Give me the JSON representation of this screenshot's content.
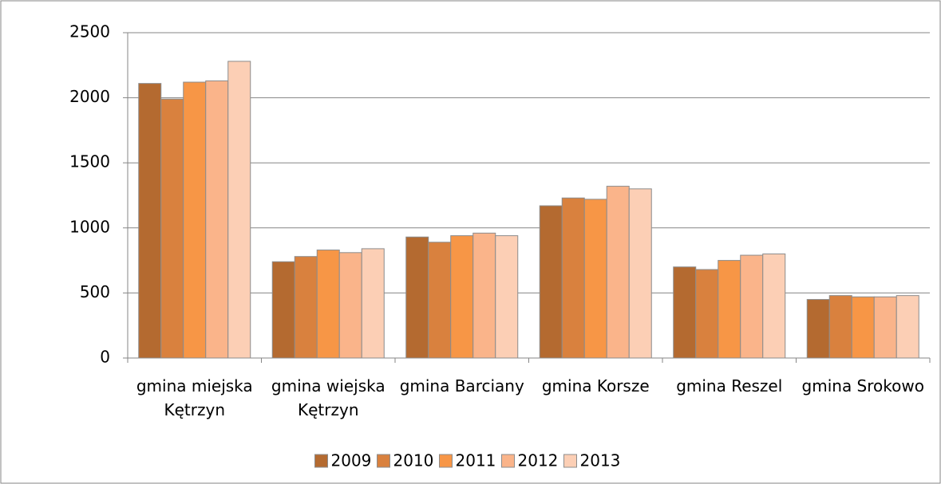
{
  "chart_data": {
    "type": "bar",
    "categories": [
      "gmina miejska Kętrzyn",
      "gmina wiejska Kętrzyn",
      "gmina Barciany",
      "gmina Korsze",
      "gmina Reszel",
      "gmina Srokowo"
    ],
    "series": [
      {
        "name": "2009",
        "color": "#b46a30",
        "values": [
          2110,
          740,
          930,
          1170,
          700,
          450
        ]
      },
      {
        "name": "2010",
        "color": "#d9813e",
        "values": [
          1990,
          780,
          890,
          1230,
          680,
          480
        ]
      },
      {
        "name": "2011",
        "color": "#f79646",
        "values": [
          2120,
          830,
          940,
          1220,
          750,
          470
        ]
      },
      {
        "name": "2012",
        "color": "#fab48a",
        "values": [
          2130,
          810,
          960,
          1320,
          790,
          470
        ]
      },
      {
        "name": "2013",
        "color": "#fccfb5",
        "values": [
          2280,
          840,
          940,
          1300,
          800,
          480
        ]
      }
    ],
    "ylim": [
      0,
      2500
    ],
    "yticks": [
      0,
      500,
      1000,
      1500,
      2000,
      2500
    ],
    "grid": true,
    "legend": "bottom"
  }
}
